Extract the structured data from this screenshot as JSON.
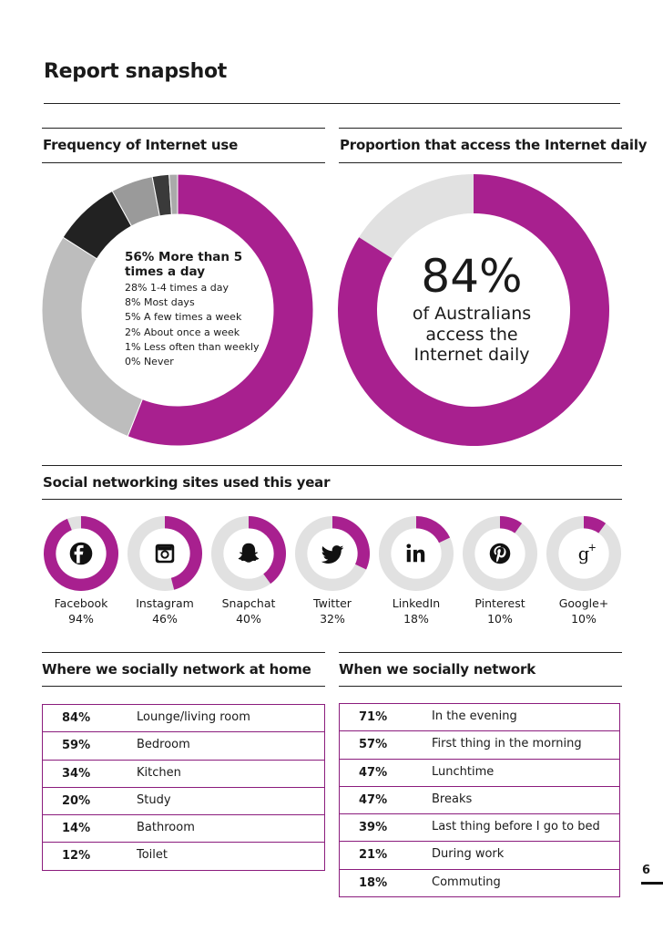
{
  "page_title": "Report snapshot",
  "frequency": {
    "title": "Frequency of Internet use",
    "lead": "56% More than 5 times a day",
    "lines": [
      "28% 1-4 times a day",
      "8% Most days",
      "5% A few times a week",
      "2% About once a week",
      "1% Less often than weekly",
      "0% Never"
    ],
    "segments": [
      {
        "label": "More than 5 times a day",
        "value": 56,
        "color": "#a8208f"
      },
      {
        "label": "1-4 times a day",
        "value": 28,
        "color": "#bdbdbd"
      },
      {
        "label": "Most days",
        "value": 8,
        "color": "#222222"
      },
      {
        "label": "A few times a week",
        "value": 5,
        "color": "#9a9a9a"
      },
      {
        "label": "About once a week",
        "value": 2,
        "color": "#3a3a3a"
      },
      {
        "label": "Less often than weekly",
        "value": 1,
        "color": "#aaaaaa"
      }
    ]
  },
  "daily": {
    "title": "Proportion that access the Internet daily",
    "value": 84,
    "value_label": "84%",
    "caption": [
      "of Australians",
      "access the",
      "Internet daily"
    ],
    "color": "#a8208f",
    "rest_color": "#e1e1e1"
  },
  "social": {
    "title": "Social networking sites used this year",
    "items": [
      {
        "name": "Facebook",
        "pct_label": "94%",
        "value": 94,
        "icon": "facebook-icon"
      },
      {
        "name": "Instagram",
        "pct_label": "46%",
        "value": 46,
        "icon": "instagram-icon"
      },
      {
        "name": "Snapchat",
        "pct_label": "40%",
        "value": 40,
        "icon": "snapchat-icon"
      },
      {
        "name": "Twitter",
        "pct_label": "32%",
        "value": 32,
        "icon": "twitter-icon"
      },
      {
        "name": "LinkedIn",
        "pct_label": "18%",
        "value": 18,
        "icon": "linkedin-icon"
      },
      {
        "name": "Pinterest",
        "pct_label": "10%",
        "value": 10,
        "icon": "pinterest-icon"
      },
      {
        "name": "Google+",
        "pct_label": "10%",
        "value": 10,
        "icon": "googleplus-icon"
      }
    ]
  },
  "home": {
    "title": "Where we socially network at home",
    "rows": [
      {
        "pct": "84%",
        "label": "Lounge/living room"
      },
      {
        "pct": "59%",
        "label": "Bedroom"
      },
      {
        "pct": "34%",
        "label": "Kitchen"
      },
      {
        "pct": "20%",
        "label": "Study"
      },
      {
        "pct": "14%",
        "label": "Bathroom"
      },
      {
        "pct": "12%",
        "label": "Toilet"
      }
    ]
  },
  "when": {
    "title": "When we socially network",
    "rows": [
      {
        "pct": "71%",
        "label": "In the evening"
      },
      {
        "pct": "57%",
        "label": "First thing in the morning"
      },
      {
        "pct": "47%",
        "label": "Lunchtime"
      },
      {
        "pct": "47%",
        "label": "Breaks"
      },
      {
        "pct": "39%",
        "label": "Last thing before I go to bed"
      },
      {
        "pct": "21%",
        "label": "During work"
      },
      {
        "pct": "18%",
        "label": "Commuting"
      }
    ]
  },
  "page_number": "6",
  "colors": {
    "accent": "#a8208f",
    "track": "#e1e1e1",
    "table_border": "#8b1c7d"
  }
}
